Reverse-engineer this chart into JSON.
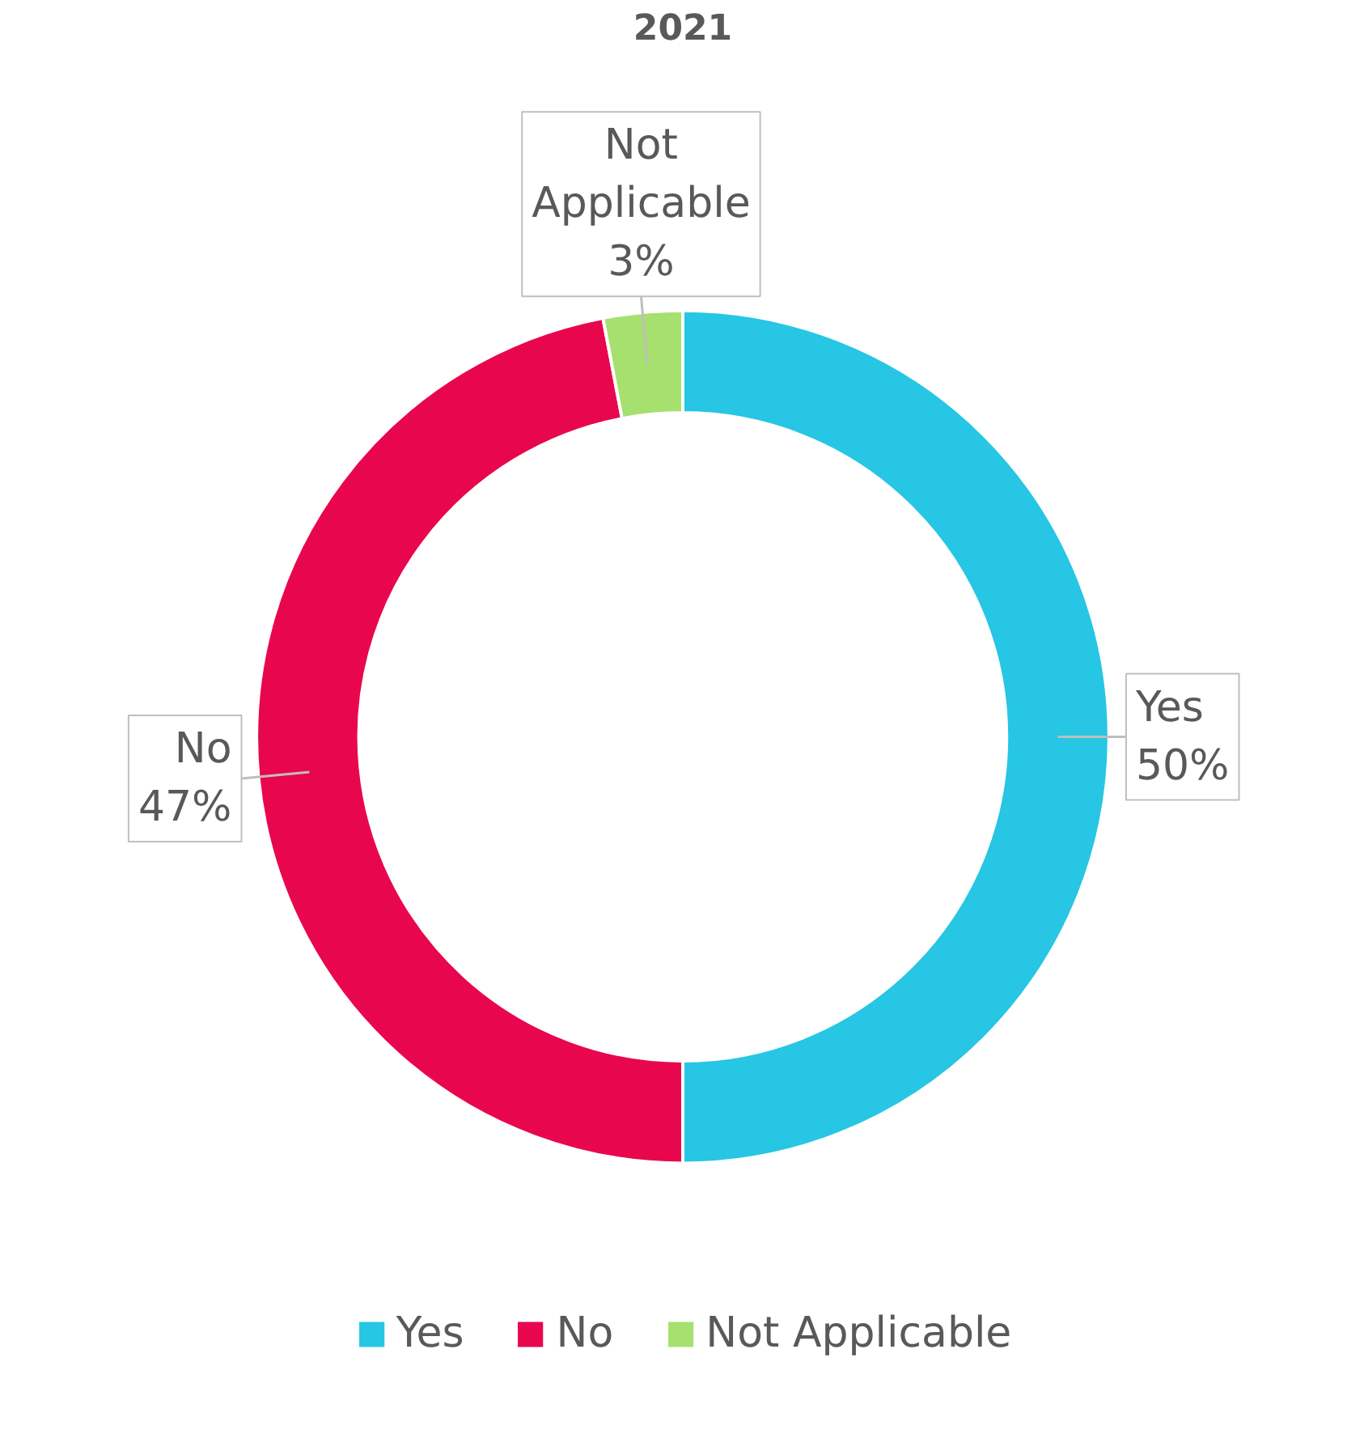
{
  "chart_data": {
    "type": "donut",
    "title": "2021",
    "categories": [
      "Yes",
      "No",
      "Not Applicable"
    ],
    "values": [
      50,
      47,
      3
    ],
    "colors": [
      "#26c6e4",
      "#e8074f",
      "#a6e06e"
    ],
    "value_labels": [
      "50%",
      "47%",
      "3%"
    ],
    "legend": "bottom"
  }
}
